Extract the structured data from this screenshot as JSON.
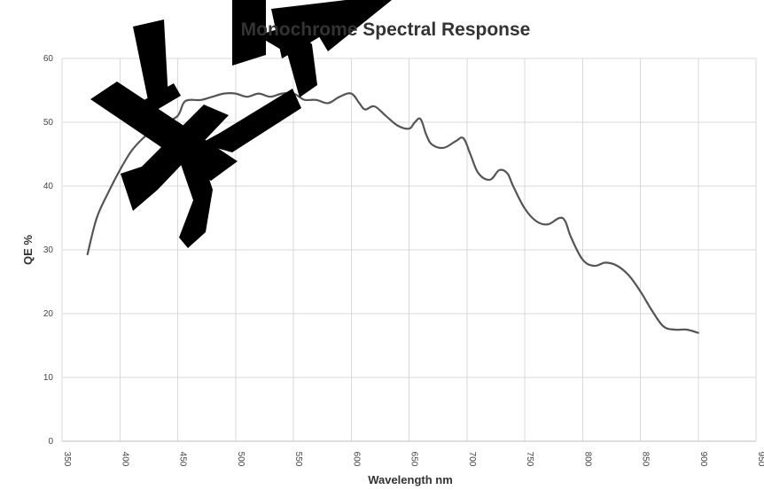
{
  "chart_data": {
    "type": "line",
    "title": "Monochrome Spectral Response",
    "xlabel": "Wavelength nm",
    "ylabel": "QE %",
    "xlim": [
      350,
      950
    ],
    "ylim": [
      0,
      60
    ],
    "x_ticks": [
      "350",
      "400",
      "450",
      "500",
      "550",
      "600",
      "650",
      "700",
      "750",
      "800",
      "850",
      "900",
      "950"
    ],
    "y_ticks": [
      "0",
      "10",
      "20",
      "30",
      "40",
      "50",
      "60"
    ],
    "grid": true,
    "legend": "none",
    "series": [
      {
        "color": "#555555",
        "x": [
          372,
          380,
          390,
          400,
          410,
          420,
          430,
          440,
          450,
          455,
          460,
          470,
          480,
          490,
          500,
          510,
          520,
          530,
          540,
          550,
          555,
          560,
          570,
          580,
          590,
          600,
          607,
          612,
          620,
          630,
          640,
          650,
          655,
          660,
          665,
          670,
          680,
          690,
          697,
          703,
          710,
          720,
          728,
          735,
          740,
          750,
          760,
          770,
          780,
          785,
          790,
          800,
          810,
          820,
          830,
          840,
          850,
          860,
          870,
          880,
          890,
          900
        ],
        "y": [
          29.3,
          35,
          39,
          42.5,
          45.5,
          47.5,
          49,
          50,
          51,
          53,
          53.5,
          53.5,
          54,
          54.5,
          54.5,
          54,
          54.5,
          54,
          54.5,
          54.5,
          54,
          53.5,
          53.5,
          53,
          54,
          54.5,
          53,
          52,
          52.5,
          51,
          49.5,
          49,
          50,
          50.5,
          48,
          46.5,
          46,
          47,
          47.5,
          45,
          42,
          41,
          42.5,
          42,
          40,
          36.5,
          34.5,
          34,
          35,
          34.5,
          32,
          28.5,
          27.5,
          28,
          27.5,
          26,
          23.5,
          20.5,
          18,
          17.5,
          17.5,
          17
        ]
      }
    ]
  }
}
